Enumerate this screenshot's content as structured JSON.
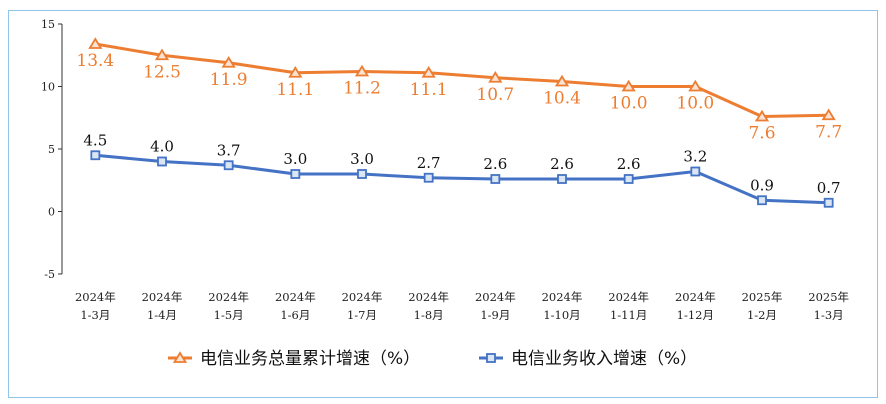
{
  "chart_data": {
    "type": "line",
    "title": "",
    "xlabel": "",
    "ylabel": "",
    "ylim": [
      -5,
      15
    ],
    "yticks": [
      -5,
      0,
      5,
      10,
      15
    ],
    "grid": false,
    "legend_position": "bottom",
    "categories": [
      [
        "2024年",
        "1-3月"
      ],
      [
        "2024年",
        "1-4月"
      ],
      [
        "2024年",
        "1-5月"
      ],
      [
        "2024年",
        "1-6月"
      ],
      [
        "2024年",
        "1-7月"
      ],
      [
        "2024年",
        "1-8月"
      ],
      [
        "2024年",
        "1-9月"
      ],
      [
        "2024年",
        "1-10月"
      ],
      [
        "2024年",
        "1-11月"
      ],
      [
        "2024年",
        "1-12月"
      ],
      [
        "2025年",
        "1-2月"
      ],
      [
        "2025年",
        "1-3月"
      ]
    ],
    "series": [
      {
        "name": "电信业务总量累计增速（%）",
        "marker": "triangle",
        "color": "#ed7d31",
        "values": [
          13.4,
          12.5,
          11.9,
          11.1,
          11.2,
          11.1,
          10.7,
          10.4,
          10.0,
          10.0,
          7.6,
          7.7
        ],
        "labels": [
          "13.4",
          "12.5",
          "11.9",
          "11.1",
          "11.2",
          "11.1",
          "10.7",
          "10.4",
          "10.0",
          "10.0",
          "7.6",
          "7.7"
        ]
      },
      {
        "name": "电信业务收入增速（%）",
        "marker": "square",
        "color": "#4472c4",
        "values": [
          4.5,
          4.0,
          3.7,
          3.0,
          3.0,
          2.7,
          2.6,
          2.6,
          2.6,
          3.2,
          0.9,
          0.7
        ],
        "labels": [
          "4.5",
          "4.0",
          "3.7",
          "3.0",
          "3.0",
          "2.7",
          "2.6",
          "2.6",
          "2.6",
          "3.2",
          "0.9",
          "0.7"
        ]
      }
    ]
  }
}
